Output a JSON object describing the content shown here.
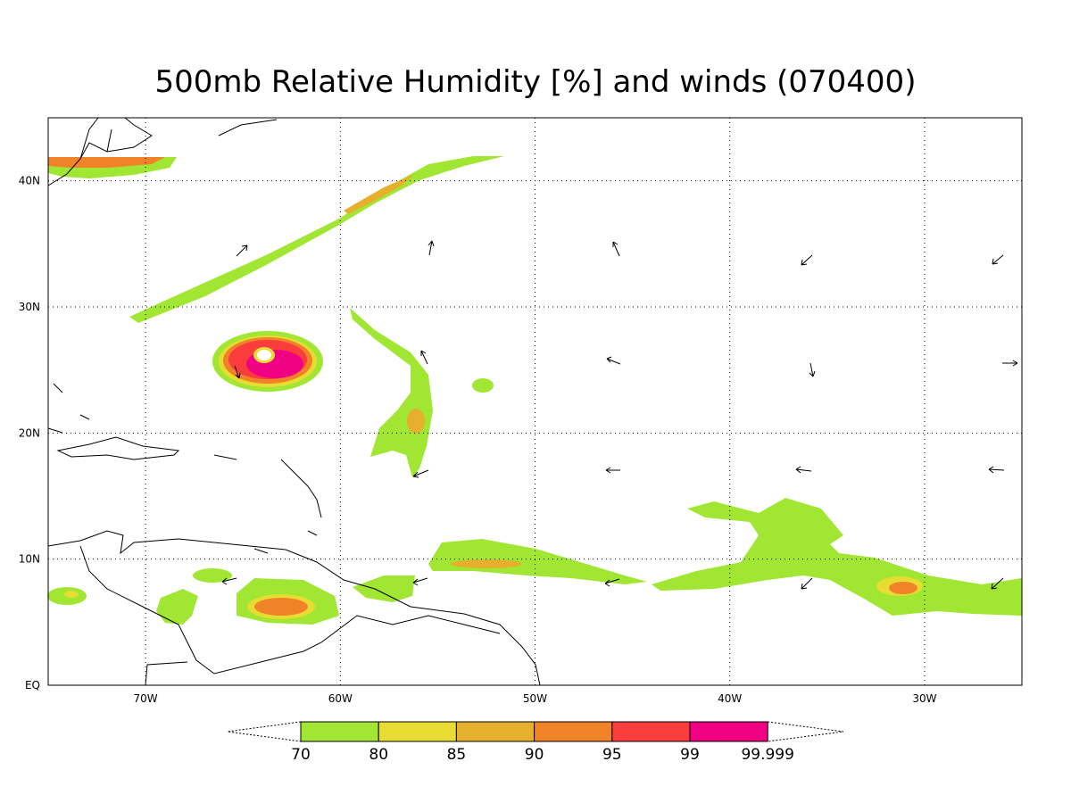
{
  "map": {
    "title": "500mb Relative Humidity [%] and winds (070400)",
    "xlim": [
      -75,
      -25
    ],
    "ylim": [
      0,
      45
    ],
    "xticks": [
      {
        "value": -70,
        "label": "70W"
      },
      {
        "value": -60,
        "label": "60W"
      },
      {
        "value": -50,
        "label": "50W"
      },
      {
        "value": -40,
        "label": "40W"
      },
      {
        "value": -30,
        "label": "30W"
      }
    ],
    "yticks": [
      {
        "value": 0,
        "label": "EQ"
      },
      {
        "value": 10,
        "label": "10N"
      },
      {
        "value": 20,
        "label": "20N"
      },
      {
        "value": 30,
        "label": "30N"
      },
      {
        "value": 40,
        "label": "40N"
      }
    ],
    "grid": true,
    "colorbar": {
      "levels": [
        70,
        80,
        85,
        90,
        95,
        99,
        99.999
      ],
      "colors": [
        "#a0e632",
        "#e6dc32",
        "#e6af2d",
        "#f08228",
        "#fa3c3c",
        "#f00082"
      ]
    }
  }
}
